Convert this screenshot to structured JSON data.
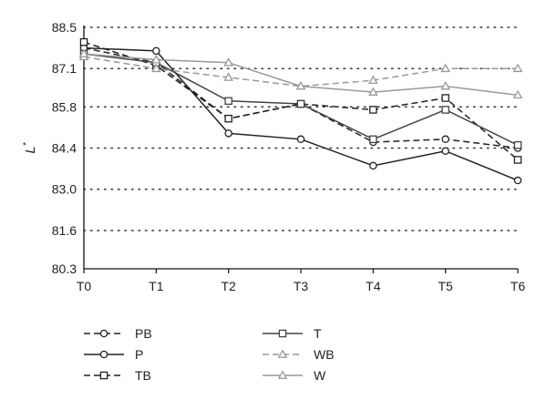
{
  "chart_data": {
    "type": "line",
    "title": "",
    "xlabel": "",
    "ylabel": "L",
    "ylabel_superscript": "*",
    "categories": [
      "T0",
      "T1",
      "T2",
      "T3",
      "T4",
      "T5",
      "T6"
    ],
    "ylim": [
      80.3,
      88.5
    ],
    "yticks": [
      "80.3",
      "81.6",
      "83.0",
      "84.4",
      "85.8",
      "87.1",
      "88.5"
    ],
    "grid": "horizontal-dotted",
    "legend_position": "bottom",
    "series": [
      {
        "name": "PB",
        "style": "dashed",
        "marker": "circle",
        "color": "#222222",
        "values": [
          87.8,
          87.3,
          85.4,
          85.9,
          84.6,
          84.7,
          84.4
        ]
      },
      {
        "name": "P",
        "style": "solid",
        "marker": "circle",
        "color": "#222222",
        "values": [
          87.8,
          87.7,
          84.9,
          84.7,
          83.8,
          84.3,
          83.3
        ]
      },
      {
        "name": "TB",
        "style": "dashed",
        "marker": "square",
        "color": "#222222",
        "values": [
          88.0,
          87.2,
          85.4,
          85.9,
          85.7,
          86.1,
          84.0
        ]
      },
      {
        "name": "T",
        "style": "solid",
        "marker": "square",
        "color": "#444444",
        "values": [
          87.6,
          87.3,
          86.0,
          85.9,
          84.7,
          85.7,
          84.5
        ]
      },
      {
        "name": "WB",
        "style": "dashed",
        "marker": "triangle",
        "color": "#999999",
        "values": [
          87.5,
          87.1,
          86.8,
          86.5,
          86.7,
          87.1,
          87.1
        ]
      },
      {
        "name": "W",
        "style": "solid",
        "marker": "triangle",
        "color": "#999999",
        "values": [
          87.6,
          87.4,
          87.3,
          86.5,
          86.3,
          86.5,
          86.2
        ]
      }
    ]
  }
}
